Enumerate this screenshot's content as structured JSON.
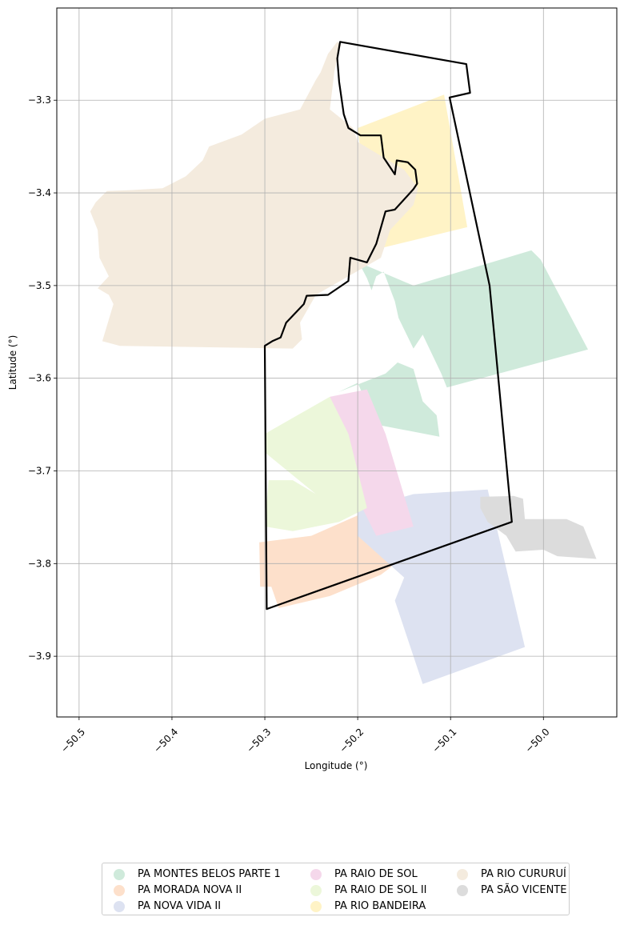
{
  "chart_data": {
    "type": "map",
    "xlabel": "Longitude (°)",
    "ylabel": "Latitude (°)",
    "xlim": [
      -50.524,
      -49.921
    ],
    "ylim": [
      -3.9655,
      -3.2005
    ],
    "x_ticks": [
      -50.5,
      -50.4,
      -50.3,
      -50.2,
      -50.1,
      -50.0
    ],
    "x_tick_labels": [
      "−50.5",
      "−50.4",
      "−50.3",
      "−50.2",
      "−50.1",
      "−50.0"
    ],
    "y_ticks": [
      -3.3,
      -3.4,
      -3.5,
      -3.6,
      -3.7,
      -3.8,
      -3.9
    ],
    "y_tick_labels": [
      "−3.3",
      "−3.4",
      "−3.5",
      "−3.6",
      "−3.7",
      "−3.8",
      "−3.9"
    ],
    "grid": true,
    "legend_position": "below",
    "series": [
      {
        "name": "PA MONTES BELOS PARTE 1",
        "color": "#cfeadb",
        "polygons": [
          [
            [
              -50.199,
              -3.475
            ],
            [
              -50.14,
              -3.5
            ],
            [
              -50.013,
              -3.462
            ],
            [
              -50.003,
              -3.472
            ],
            [
              -49.952,
              -3.569
            ],
            [
              -50.104,
              -3.61
            ],
            [
              -50.11,
              -3.595
            ],
            [
              -50.13,
              -3.553
            ],
            [
              -50.14,
              -3.568
            ],
            [
              -50.156,
              -3.535
            ],
            [
              -50.16,
              -3.517
            ],
            [
              -50.172,
              -3.485
            ],
            [
              -50.18,
              -3.49
            ],
            [
              -50.185,
              -3.505
            ],
            [
              -50.19,
              -3.492
            ]
          ],
          [
            [
              -50.221,
              -3.615
            ],
            [
              -50.17,
              -3.595
            ],
            [
              -50.157,
              -3.583
            ],
            [
              -50.14,
              -3.59
            ],
            [
              -50.13,
              -3.625
            ],
            [
              -50.115,
              -3.64
            ],
            [
              -50.112,
              -3.663
            ],
            [
              -50.18,
              -3.65
            ],
            [
              -50.2,
              -3.605
            ]
          ]
        ]
      },
      {
        "name": "PA MORADA NOVA II",
        "color": "#fde0cb",
        "polygons": [
          [
            [
              -50.306,
              -3.777
            ],
            [
              -50.25,
              -3.77
            ],
            [
              -50.2,
              -3.748
            ],
            [
              -50.17,
              -3.768
            ],
            [
              -50.159,
              -3.8
            ],
            [
              -50.175,
              -3.812
            ],
            [
              -50.23,
              -3.835
            ],
            [
              -50.285,
              -3.848
            ],
            [
              -50.293,
              -3.825
            ],
            [
              -50.305,
              -3.825
            ]
          ]
        ]
      },
      {
        "name": "PA NOVA VIDA II",
        "color": "#dde2f1",
        "polygons": [
          [
            [
              -50.2,
              -3.742
            ],
            [
              -50.14,
              -3.725
            ],
            [
              -50.06,
              -3.72
            ],
            [
              -50.02,
              -3.89
            ],
            [
              -50.13,
              -3.93
            ],
            [
              -50.15,
              -3.87
            ],
            [
              -50.16,
              -3.84
            ],
            [
              -50.15,
              -3.815
            ],
            [
              -50.2,
              -3.77
            ]
          ]
        ]
      },
      {
        "name": "PA RAIO DE SOL",
        "color": "#f5d8eb",
        "polygons": [
          [
            [
              -50.23,
              -3.62
            ],
            [
              -50.19,
              -3.612
            ],
            [
              -50.17,
              -3.66
            ],
            [
              -50.14,
              -3.76
            ],
            [
              -50.18,
              -3.77
            ],
            [
              -50.2,
              -3.73
            ]
          ]
        ]
      },
      {
        "name": "PA RAIO DE SOL II",
        "color": "#ecf7da",
        "polygons": [
          [
            [
              -50.3,
              -3.66
            ],
            [
              -50.23,
              -3.62
            ],
            [
              -50.21,
              -3.66
            ],
            [
              -50.19,
              -3.74
            ],
            [
              -50.22,
              -3.755
            ],
            [
              -50.27,
              -3.765
            ],
            [
              -50.3,
              -3.76
            ],
            [
              -50.296,
              -3.71
            ],
            [
              -50.27,
              -3.71
            ],
            [
              -50.245,
              -3.725
            ],
            [
              -50.3,
              -3.68
            ]
          ]
        ]
      },
      {
        "name": "PA RIO BANDEIRA",
        "color": "#fff3c6",
        "polygons": [
          [
            [
              -50.2,
              -3.33
            ],
            [
              -50.107,
              -3.294
            ],
            [
              -50.082,
              -3.437
            ],
            [
              -50.185,
              -3.462
            ]
          ]
        ]
      },
      {
        "name": "PA RIO CURURUÍ",
        "color": "#f4ebde",
        "polygons": [
          [
            [
              -50.222,
              -3.237
            ],
            [
              -50.232,
              -3.25
            ],
            [
              -50.24,
              -3.27
            ],
            [
              -50.245,
              -3.278
            ],
            [
              -50.262,
              -3.31
            ],
            [
              -50.3,
              -3.32
            ],
            [
              -50.325,
              -3.337
            ],
            [
              -50.36,
              -3.35
            ],
            [
              -50.367,
              -3.365
            ],
            [
              -50.385,
              -3.382
            ],
            [
              -50.41,
              -3.395
            ],
            [
              -50.445,
              -3.397
            ],
            [
              -50.47,
              -3.398
            ],
            [
              -50.482,
              -3.41
            ],
            [
              -50.488,
              -3.42
            ],
            [
              -50.48,
              -3.44
            ],
            [
              -50.478,
              -3.47
            ],
            [
              -50.468,
              -3.49
            ],
            [
              -50.48,
              -3.503
            ],
            [
              -50.468,
              -3.51
            ],
            [
              -50.463,
              -3.52
            ],
            [
              -50.475,
              -3.56
            ],
            [
              -50.456,
              -3.565
            ],
            [
              -50.27,
              -3.568
            ],
            [
              -50.26,
              -3.558
            ],
            [
              -50.262,
              -3.54
            ],
            [
              -50.245,
              -3.51
            ],
            [
              -50.21,
              -3.49
            ],
            [
              -50.175,
              -3.47
            ],
            [
              -50.165,
              -3.44
            ],
            [
              -50.14,
              -3.413
            ],
            [
              -50.135,
              -3.395
            ],
            [
              -50.15,
              -3.375
            ],
            [
              -50.175,
              -3.36
            ],
            [
              -50.2,
              -3.345
            ],
            [
              -50.205,
              -3.33
            ],
            [
              -50.23,
              -3.31
            ],
            [
              -50.225,
              -3.268
            ],
            [
              -50.218,
              -3.24
            ]
          ]
        ]
      },
      {
        "name": "PA SÃO VICENTE",
        "color": "#dcdcdc",
        "polygons": [
          [
            [
              -50.068,
              -3.728
            ],
            [
              -50.032,
              -3.727
            ],
            [
              -50.022,
              -3.73
            ],
            [
              -50.02,
              -3.752
            ],
            [
              -49.975,
              -3.752
            ],
            [
              -49.957,
              -3.76
            ],
            [
              -49.943,
              -3.795
            ],
            [
              -49.985,
              -3.792
            ],
            [
              -50.0,
              -3.785
            ],
            [
              -50.03,
              -3.787
            ],
            [
              -50.04,
              -3.77
            ],
            [
              -50.06,
              -3.755
            ],
            [
              -50.068,
              -3.74
            ]
          ]
        ]
      }
    ],
    "boundary": {
      "name": "boundary",
      "color": "#000000",
      "points": [
        [
          -50.219,
          -3.237
        ],
        [
          -50.083,
          -3.261
        ],
        [
          -50.079,
          -3.292
        ],
        [
          -50.101,
          -3.297
        ],
        [
          -50.058,
          -3.5
        ],
        [
          -50.034,
          -3.755
        ],
        [
          -50.298,
          -3.849
        ],
        [
          -50.3,
          -3.565
        ],
        [
          -50.292,
          -3.56
        ],
        [
          -50.283,
          -3.556
        ],
        [
          -50.277,
          -3.54
        ],
        [
          -50.258,
          -3.52
        ],
        [
          -50.255,
          -3.511
        ],
        [
          -50.232,
          -3.51
        ],
        [
          -50.21,
          -3.495
        ],
        [
          -50.208,
          -3.47
        ],
        [
          -50.19,
          -3.475
        ],
        [
          -50.18,
          -3.455
        ],
        [
          -50.17,
          -3.42
        ],
        [
          -50.16,
          -3.418
        ],
        [
          -50.14,
          -3.396
        ],
        [
          -50.136,
          -3.39
        ],
        [
          -50.138,
          -3.375
        ],
        [
          -50.146,
          -3.367
        ],
        [
          -50.158,
          -3.365
        ],
        [
          -50.16,
          -3.38
        ],
        [
          -50.172,
          -3.362
        ],
        [
          -50.175,
          -3.338
        ],
        [
          -50.197,
          -3.338
        ],
        [
          -50.21,
          -3.33
        ],
        [
          -50.215,
          -3.315
        ],
        [
          -50.22,
          -3.28
        ],
        [
          -50.222,
          -3.255
        ]
      ]
    }
  }
}
